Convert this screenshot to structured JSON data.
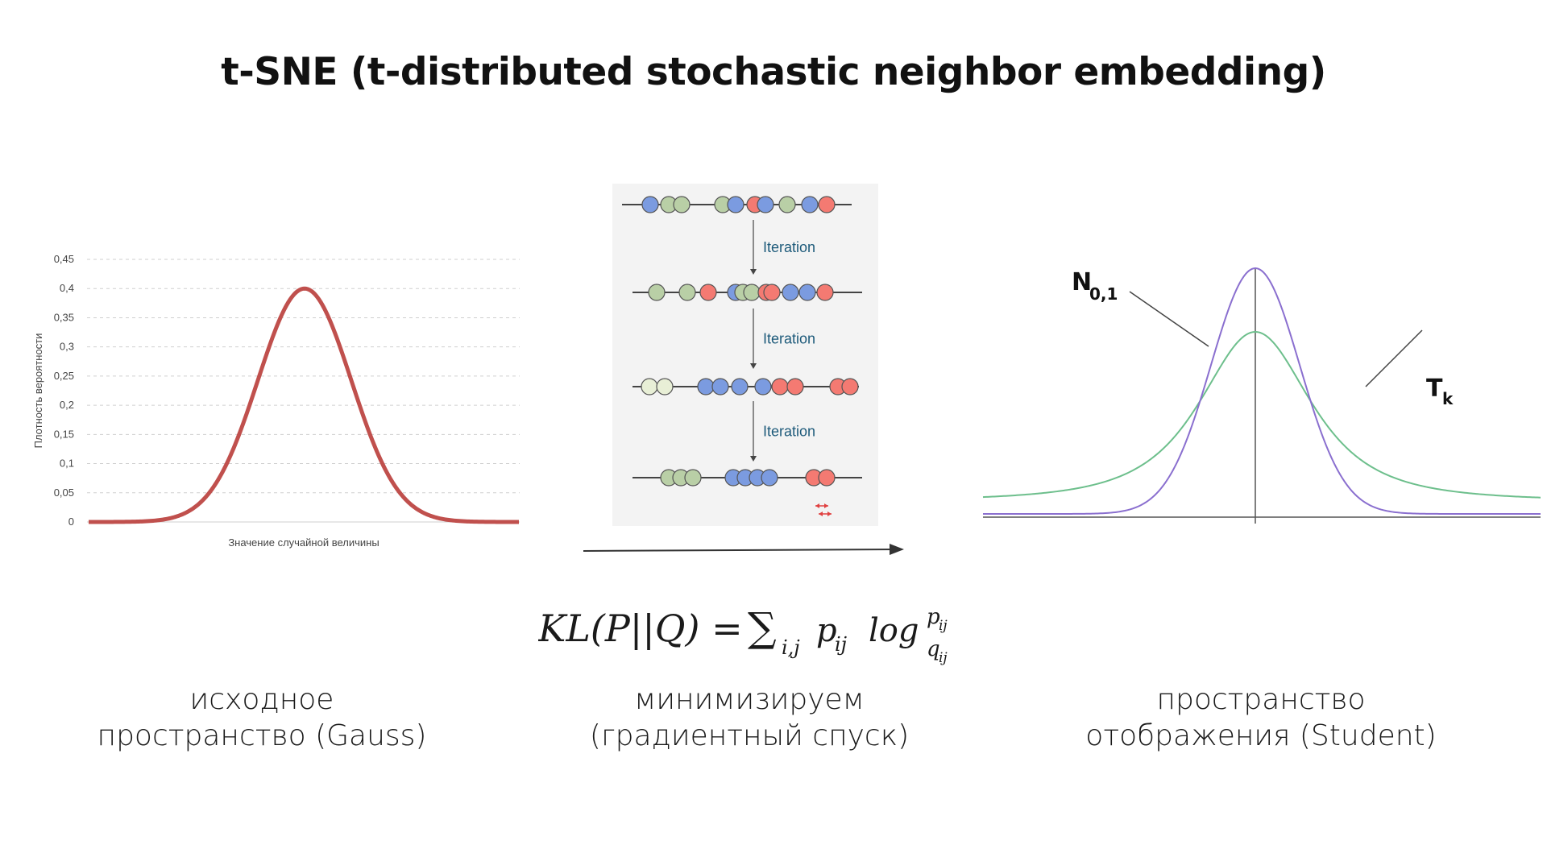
{
  "title": "t-SNE (t-distributed stochastic neighbor embedding)",
  "gauss_chart": {
    "y_ticks": [
      "0,45",
      "0,4",
      "0,35",
      "0,3",
      "0,25",
      "0,2",
      "0,15",
      "0,1",
      "0,05",
      "0"
    ],
    "ylabel": "Плотность вероятности",
    "xlabel": "Значение случайной величины",
    "curve_color": "#c0504d",
    "peak_value": 0.4,
    "grid": "dashed"
  },
  "iterations": {
    "label": "Iteration",
    "colors": {
      "blue": "#7b9be0",
      "green": "#b9cfa6",
      "red": "#f47a72",
      "pale": "#e8efd6"
    }
  },
  "student_chart": {
    "normal_label": "N",
    "normal_sub": "0,1",
    "t_label": "T",
    "t_sub": "k",
    "normal_color": "#8a6fcf",
    "t_color": "#6dbf8c"
  },
  "formula": {
    "lhs": "KL(P||Q) =",
    "sum": "∑",
    "sum_sub": "i,j",
    "term": "p",
    "term_sub": "ij",
    "log": "log",
    "num": "p",
    "num_sub": "ij",
    "den": "q",
    "den_sub": "ij"
  },
  "captions": {
    "left": [
      "исходное",
      "пространство (Gauss)"
    ],
    "middle": [
      "минимизируем",
      "(градиентный спуск)"
    ],
    "right": [
      "пространство",
      "отображения (Student)"
    ]
  }
}
